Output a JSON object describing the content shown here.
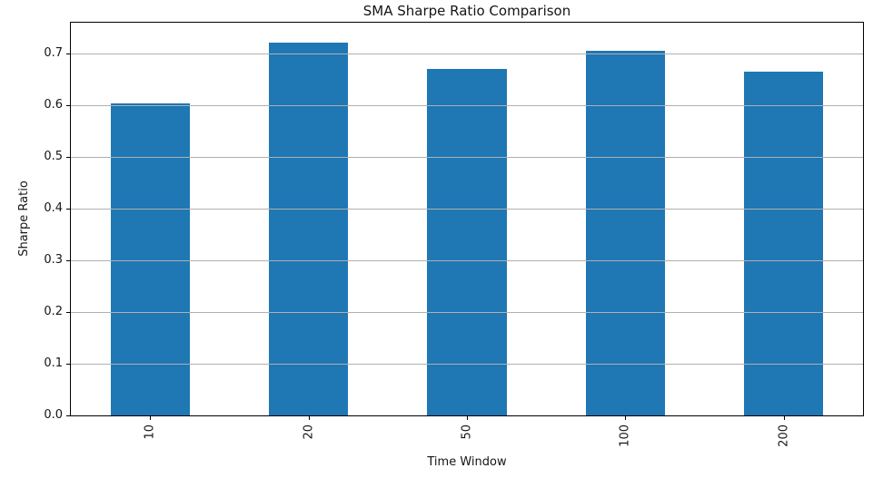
{
  "chart_data": {
    "type": "bar",
    "title": "SMA Sharpe Ratio Comparison",
    "xlabel": "Time Window",
    "ylabel": "Sharpe Ratio",
    "categories": [
      "10",
      "20",
      "50",
      "100",
      "200"
    ],
    "values": [
      0.604,
      0.721,
      0.67,
      0.706,
      0.666
    ],
    "yticks": [
      0.0,
      0.1,
      0.2,
      0.3,
      0.4,
      0.5,
      0.6,
      0.7
    ],
    "ytick_labels": [
      "0.0",
      "0.1",
      "0.2",
      "0.3",
      "0.4",
      "0.5",
      "0.6",
      "0.7"
    ],
    "ylim": [
      0.0,
      0.76
    ],
    "grid": "horizontal-only",
    "grid_color": "#b0b0b0",
    "bar_color": "#1f77b4",
    "frame_color": "#000000",
    "xtick_rotation": 90,
    "bar_width_fraction": 0.5,
    "legend_position": "none"
  }
}
